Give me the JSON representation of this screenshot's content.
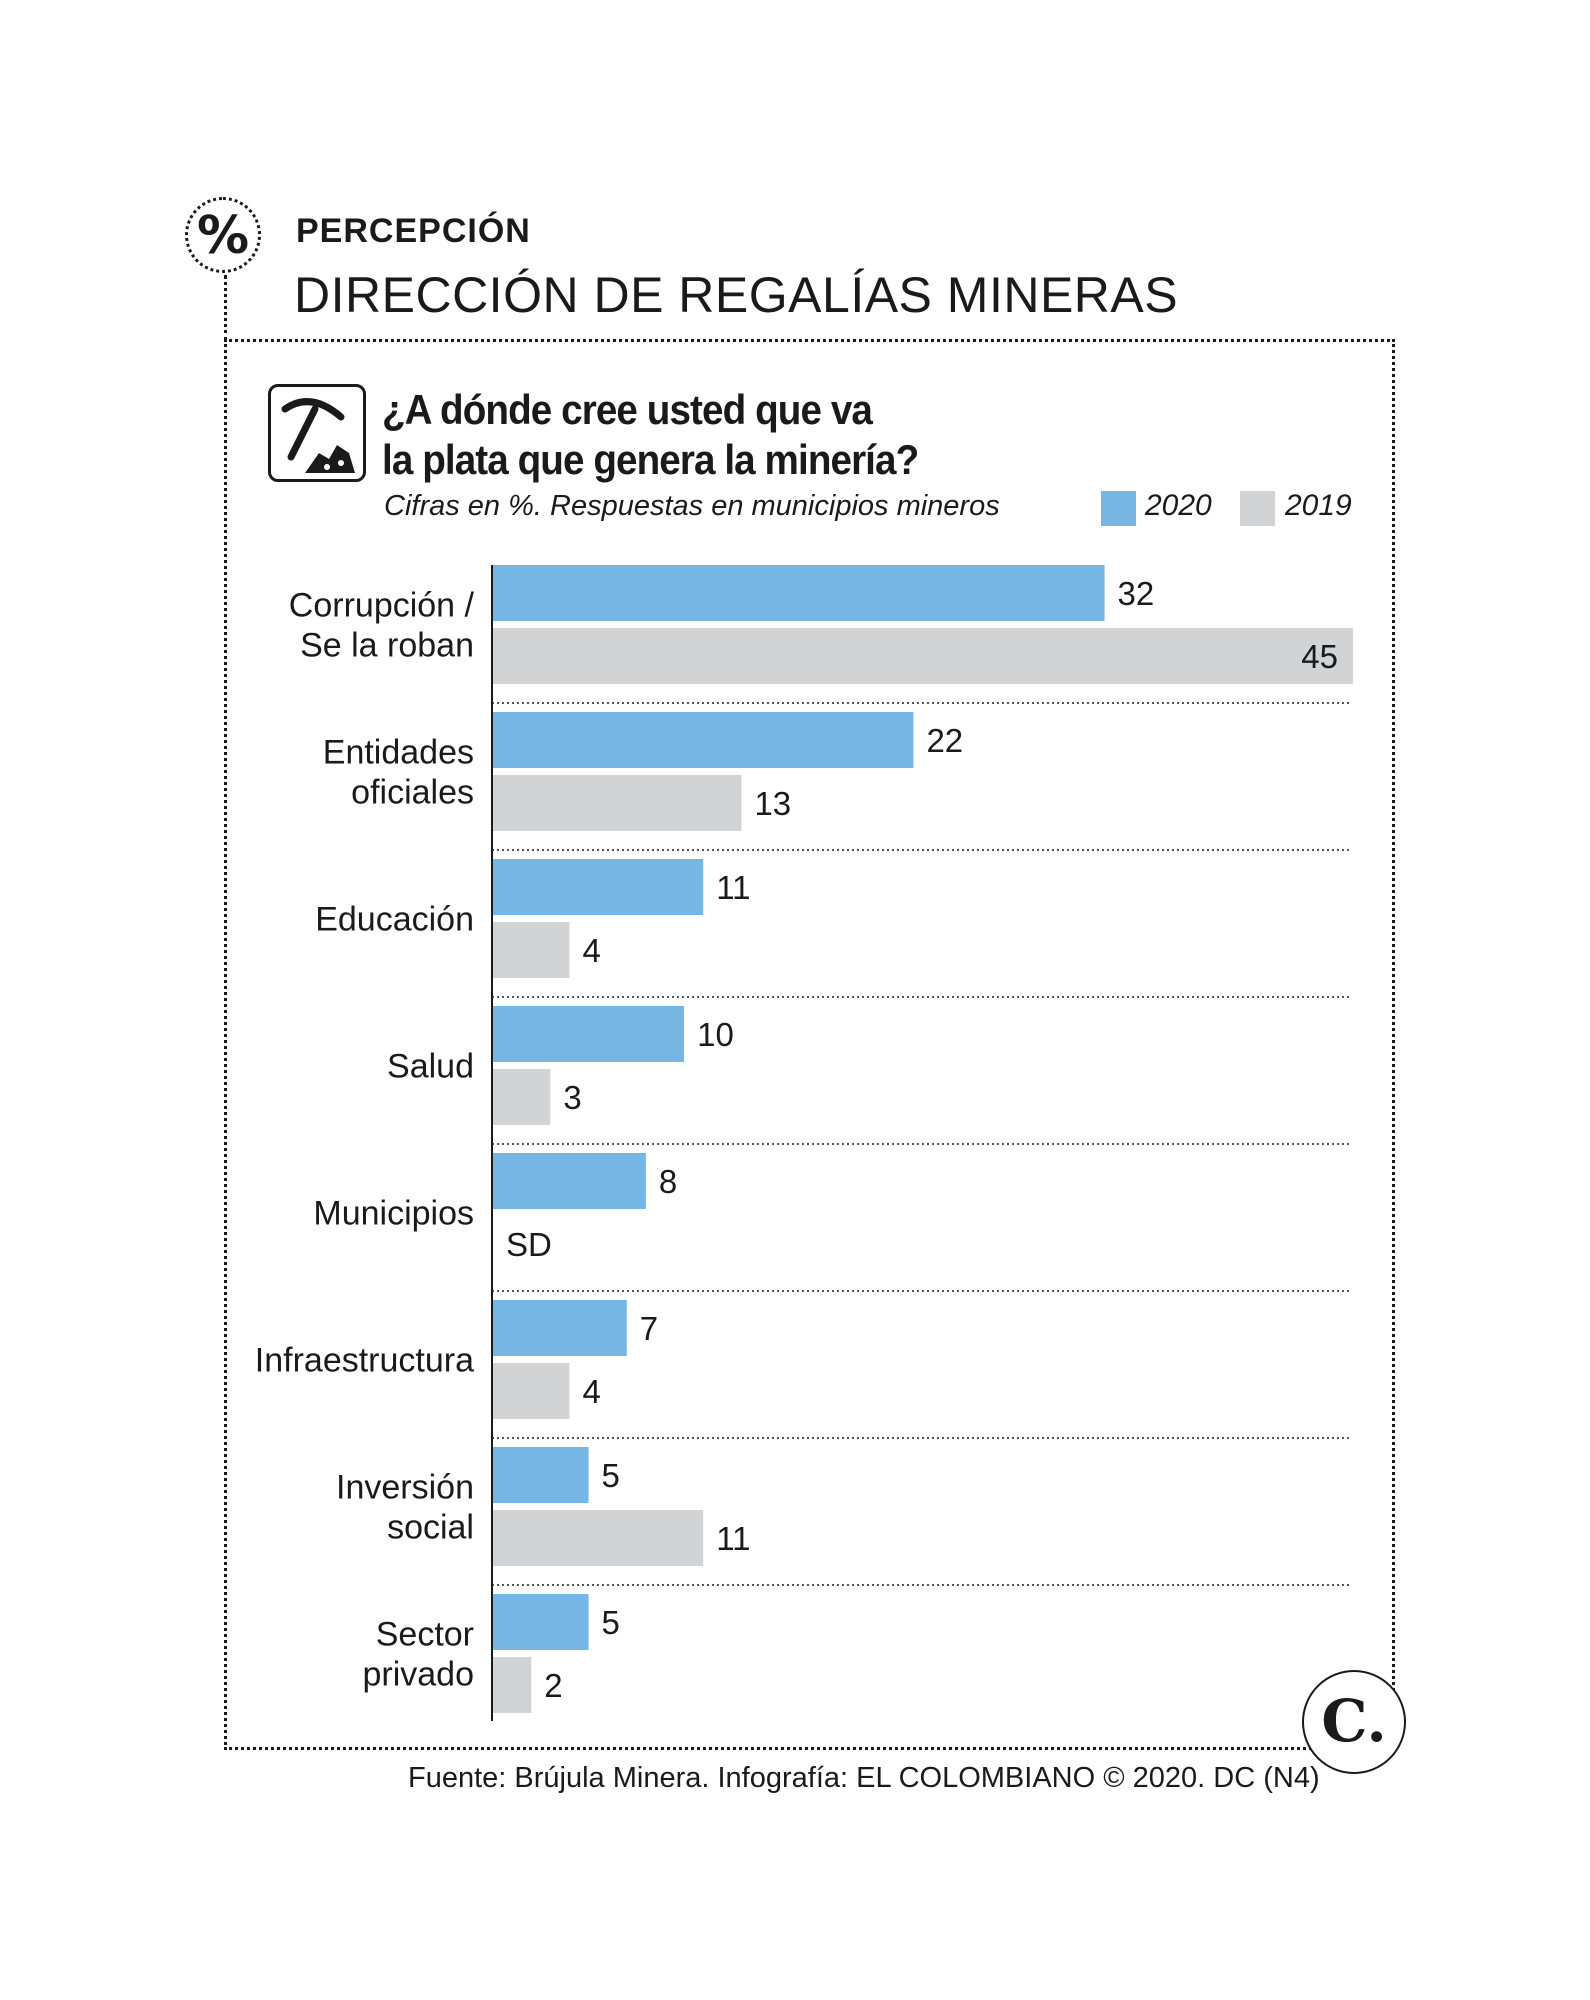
{
  "header": {
    "icon_glyph": "%",
    "kicker": "PERCEPCIÓN",
    "headline": "DIRECCIÓN DE REGALÍAS MINERAS"
  },
  "question": {
    "line1": "¿A dónde cree usted que va",
    "line2": "la plata que genera la minería?"
  },
  "subtitle": "Cifras en %. Respuestas en municipios mineros",
  "footer": {
    "source": "Fuente: Brújula Minera. Infografía: EL COLOMBIANO © 2020. DC (N4)",
    "logo_glyph": "C."
  },
  "icons": {
    "header": "percent-icon",
    "question": "pickaxe-mining-icon",
    "logo": "el-colombiano-logo"
  },
  "colors": {
    "series_2020": "#76b6e4",
    "series_2019": "#d2d3d5",
    "text": "#1a1a1a"
  },
  "chart_data": {
    "type": "bar",
    "orientation": "horizontal",
    "categories": [
      [
        "Corrupción /",
        "Se la roban"
      ],
      [
        "Entidades",
        "oficiales"
      ],
      [
        "Educación"
      ],
      [
        "Salud"
      ],
      [
        "Municipios"
      ],
      [
        "Infraestructura"
      ],
      [
        "Inversión",
        "social"
      ],
      [
        "Sector",
        "privado"
      ]
    ],
    "series": [
      {
        "name": "2020",
        "values": [
          32,
          22,
          11,
          10,
          8,
          7,
          5,
          5
        ],
        "labels": [
          "32",
          "22",
          "11",
          "10",
          "8",
          "7",
          "5",
          "5"
        ]
      },
      {
        "name": "2019",
        "values": [
          45,
          13,
          4,
          3,
          null,
          4,
          11,
          2
        ],
        "labels": [
          "45",
          "13",
          "4",
          "3",
          "SD",
          "4",
          "11",
          "2"
        ]
      }
    ],
    "xlim": [
      0,
      45
    ],
    "grid": false,
    "legend_position": "top-right"
  }
}
